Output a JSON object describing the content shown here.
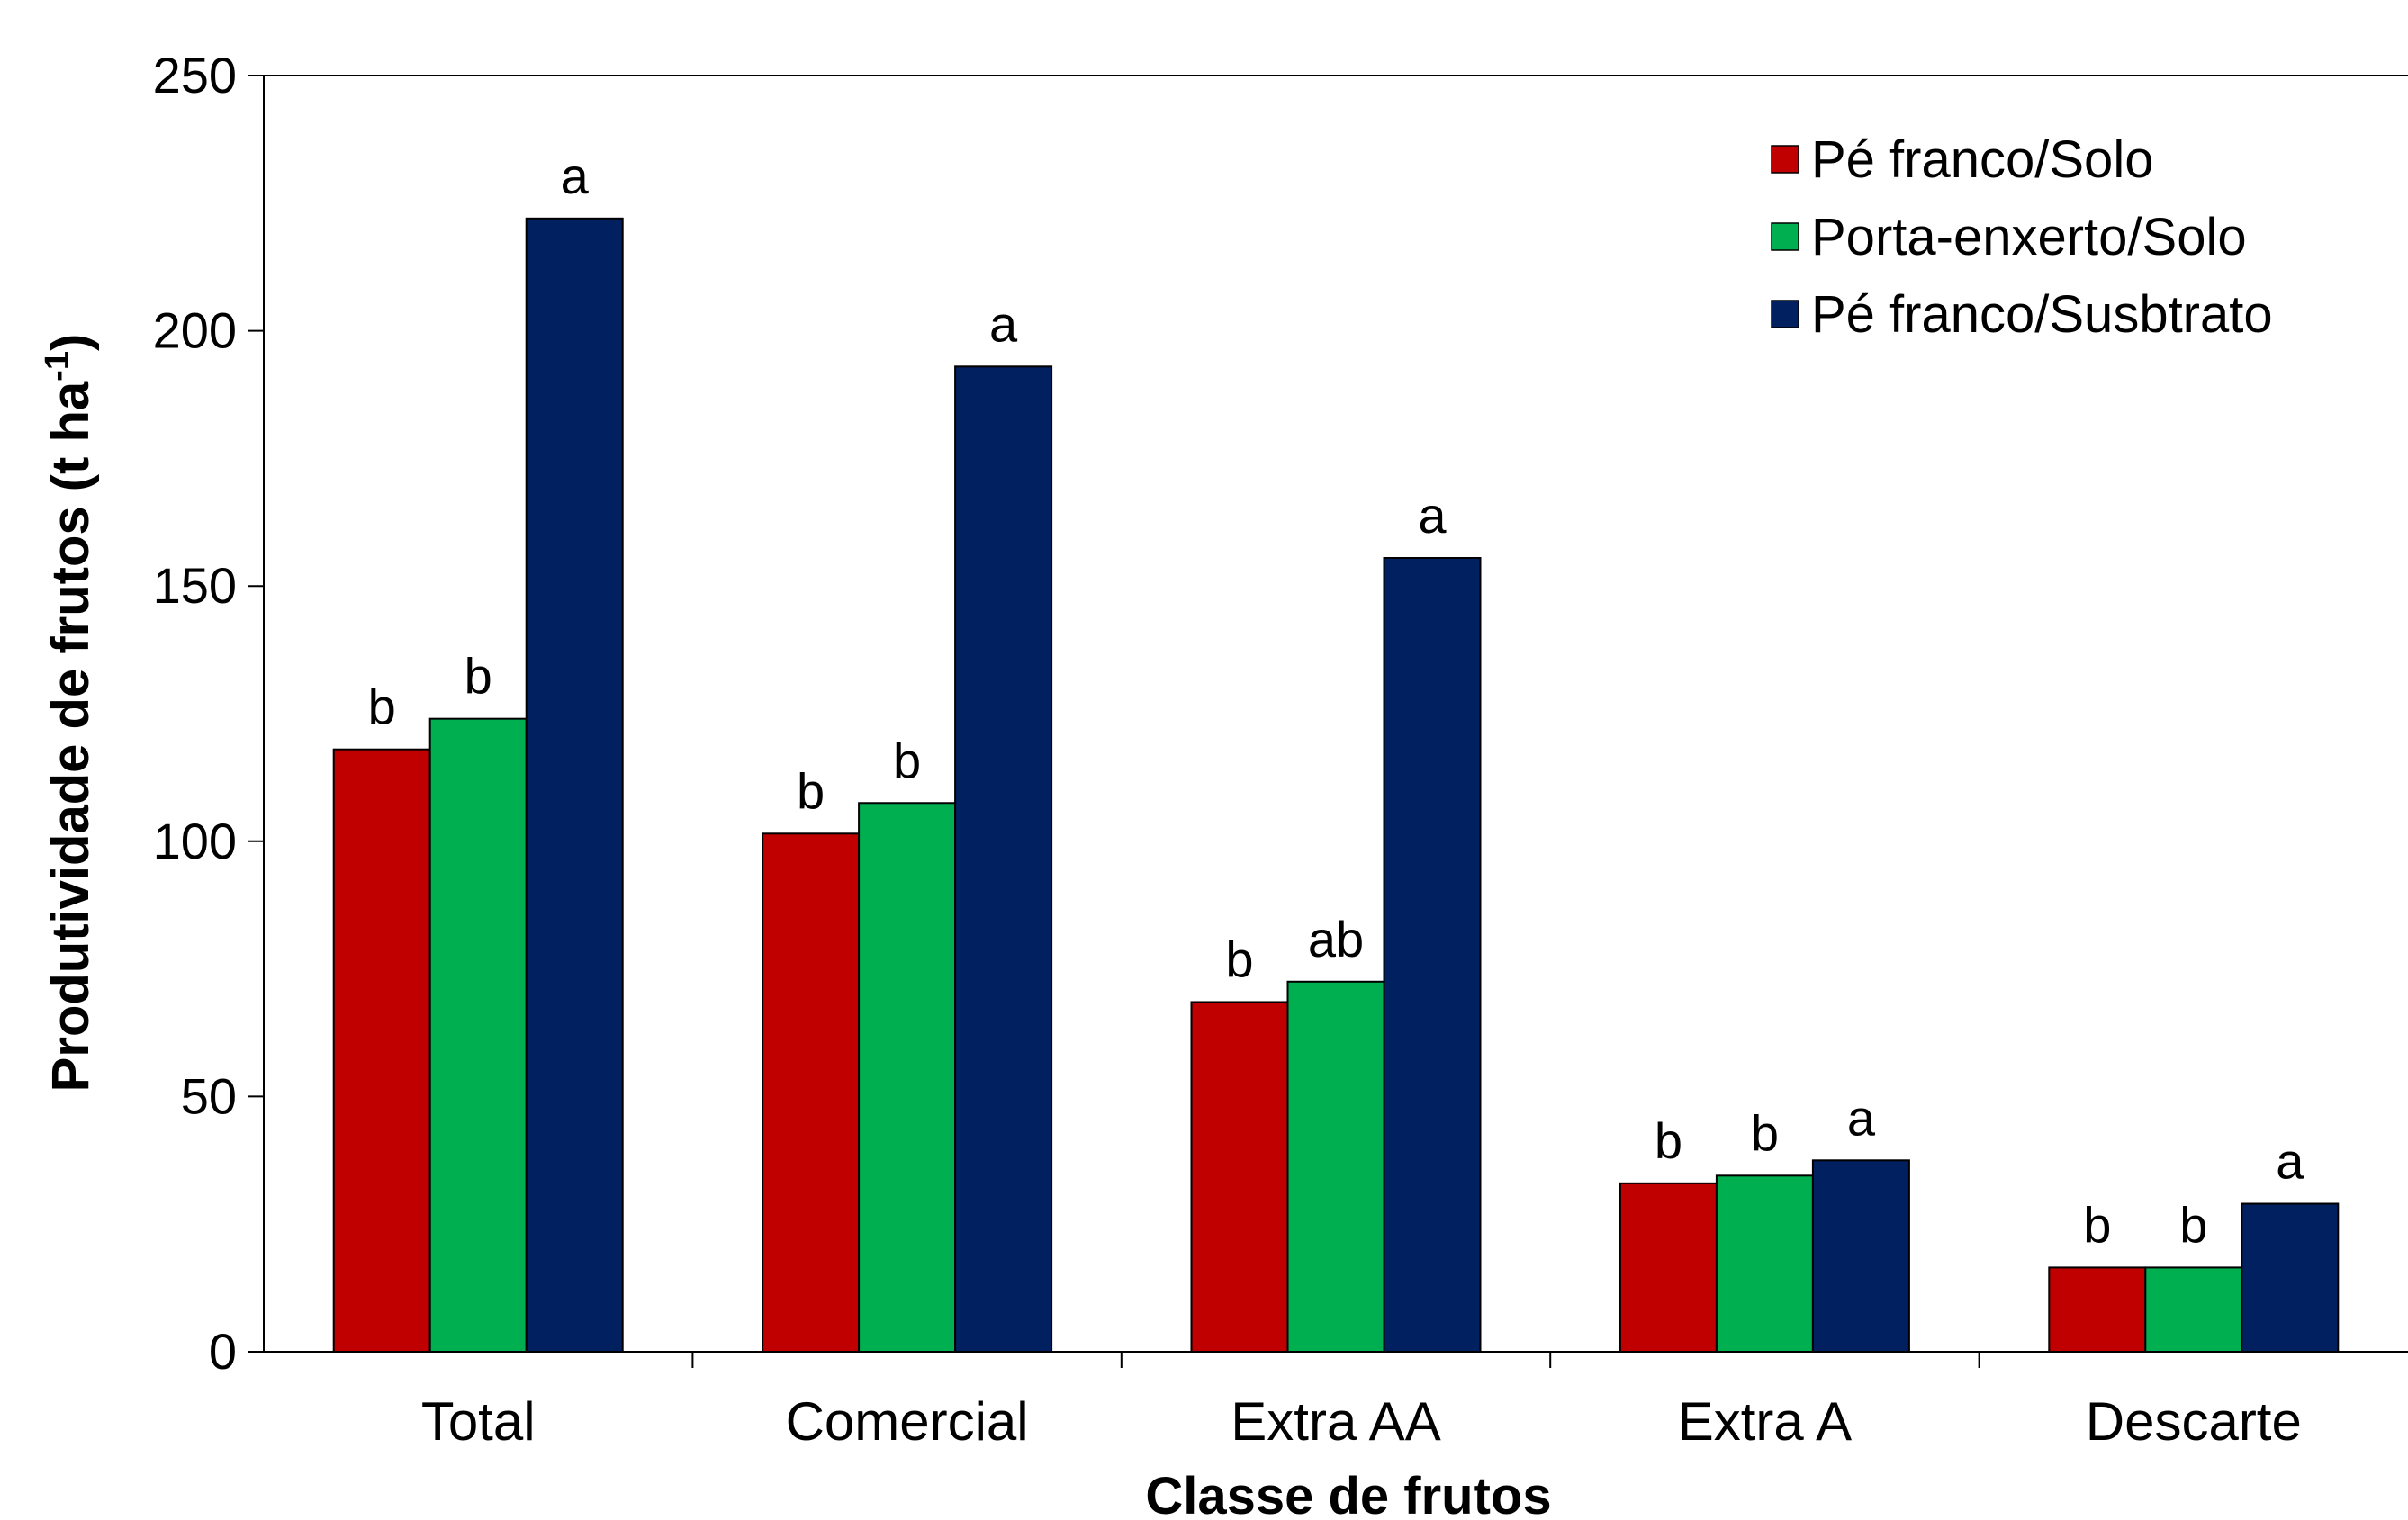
{
  "chart_data": {
    "type": "bar",
    "title": "",
    "xlabel": "Classe de frutos",
    "ylabel_main": "Produtividade de frutos (t ha",
    "ylabel_sup": "-1",
    "ylabel_close": ")",
    "ylim": [
      0,
      250
    ],
    "yticks": [
      "0",
      "50",
      "100",
      "150",
      "200",
      "250"
    ],
    "categories": [
      "Total",
      "Comercial",
      "Extra AA",
      "Extra A",
      "Descarte"
    ],
    "legend_position": "top-right",
    "grid": false,
    "series": [
      {
        "name": "Pé franco/Solo",
        "color": "#c00000",
        "values": [
          118,
          101.5,
          68.5,
          33,
          16.5
        ],
        "labels": [
          "b",
          "b",
          "b",
          "b",
          "b"
        ]
      },
      {
        "name": "Porta-enxerto/Solo",
        "color": "#00b050",
        "values": [
          124,
          107.5,
          72.5,
          34.5,
          16.5
        ],
        "labels": [
          "b",
          "b",
          "ab",
          "b",
          "b"
        ]
      },
      {
        "name": "Pé franco/Susbtrato",
        "color": "#002060",
        "values": [
          222,
          193,
          155.5,
          37.5,
          29
        ],
        "labels": [
          "a",
          "a",
          "a",
          "a",
          "a"
        ]
      }
    ]
  }
}
